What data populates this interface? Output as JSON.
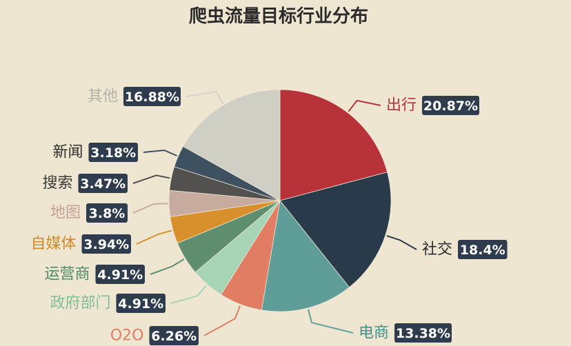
{
  "chart_data": {
    "type": "pie",
    "title": "爬虫流量目标行业分布",
    "legend": "none",
    "slices": [
      {
        "label": "出行",
        "value": 20.87,
        "value_label": "20.87%",
        "color": "#b8323a",
        "label_color": "#b8323a"
      },
      {
        "label": "社交",
        "value": 18.4,
        "value_label": "18.4%",
        "color": "#293a4b",
        "label_color": "#2b2b2b"
      },
      {
        "label": "电商",
        "value": 13.38,
        "value_label": "13.38%",
        "color": "#5f9e98",
        "label_color": "#3f8f8a"
      },
      {
        "label": "O2O",
        "value": 6.26,
        "value_label": "6.26%",
        "color": "#e07d62",
        "label_color": "#e07d62"
      },
      {
        "label": "政府部门",
        "value": 4.91,
        "value_label": "4.91%",
        "color": "#a7d4b4",
        "label_color": "#7fbf9a"
      },
      {
        "label": "运营商",
        "value": 4.91,
        "value_label": "4.91%",
        "color": "#5f8e6f",
        "label_color": "#4f8a69"
      },
      {
        "label": "自媒体",
        "value": 3.94,
        "value_label": "3.94%",
        "color": "#d8902d",
        "label_color": "#cf8a2a"
      },
      {
        "label": "地图",
        "value": 3.8,
        "value_label": "3.8%",
        "color": "#c7ab9e",
        "label_color": "#c4a196"
      },
      {
        "label": "搜索",
        "value": 3.47,
        "value_label": "3.47%",
        "color": "#535050",
        "label_color": "#3a3a3a"
      },
      {
        "label": "新闻",
        "value": 3.18,
        "value_label": "3.18%",
        "color": "#3e5160",
        "label_color": "#2e2e2e"
      },
      {
        "label": "其他",
        "value": 16.88,
        "value_label": "16.88%",
        "color": "#cfcfc5",
        "label_color": "#b3b3ab"
      }
    ]
  },
  "colors": {
    "background": "#efe6d2",
    "value_box": "#2e3c4d",
    "value_text": "#ffffff",
    "title": "#2a2a2a"
  }
}
